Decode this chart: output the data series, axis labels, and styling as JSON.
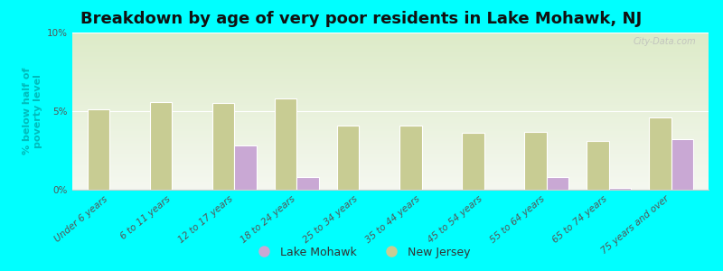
{
  "title": "Breakdown by age of very poor residents in Lake Mohawk, NJ",
  "ylabel": "% below half of\npoverty level",
  "categories": [
    "Under 6 years",
    "6 to 11 years",
    "12 to 17 years",
    "18 to 24 years",
    "25 to 34 years",
    "35 to 44 years",
    "45 to 54 years",
    "55 to 64 years",
    "65 to 74 years",
    "75 years and over"
  ],
  "lake_mohawk": [
    0.0,
    0.0,
    2.8,
    0.8,
    0.0,
    0.0,
    0.0,
    0.8,
    0.1,
    3.2
  ],
  "new_jersey": [
    5.1,
    5.6,
    5.5,
    5.8,
    4.1,
    4.1,
    3.6,
    3.7,
    3.1,
    4.6
  ],
  "lake_mohawk_color": "#c9a8d4",
  "new_jersey_color": "#c8cc93",
  "background_color": "#00ffff",
  "plot_bg_top": "#ddebc8",
  "plot_bg_bottom": "#f5f8f0",
  "ylim": [
    0,
    10
  ],
  "yticks": [
    0,
    5,
    10
  ],
  "ytick_labels": [
    "0%",
    "5%",
    "10%"
  ],
  "bar_width": 0.35,
  "title_fontsize": 13,
  "label_fontsize": 8,
  "tick_fontsize": 7.5,
  "legend_label_lake": "Lake Mohawk",
  "legend_label_nj": "New Jersey",
  "watermark": "City-Data.com"
}
